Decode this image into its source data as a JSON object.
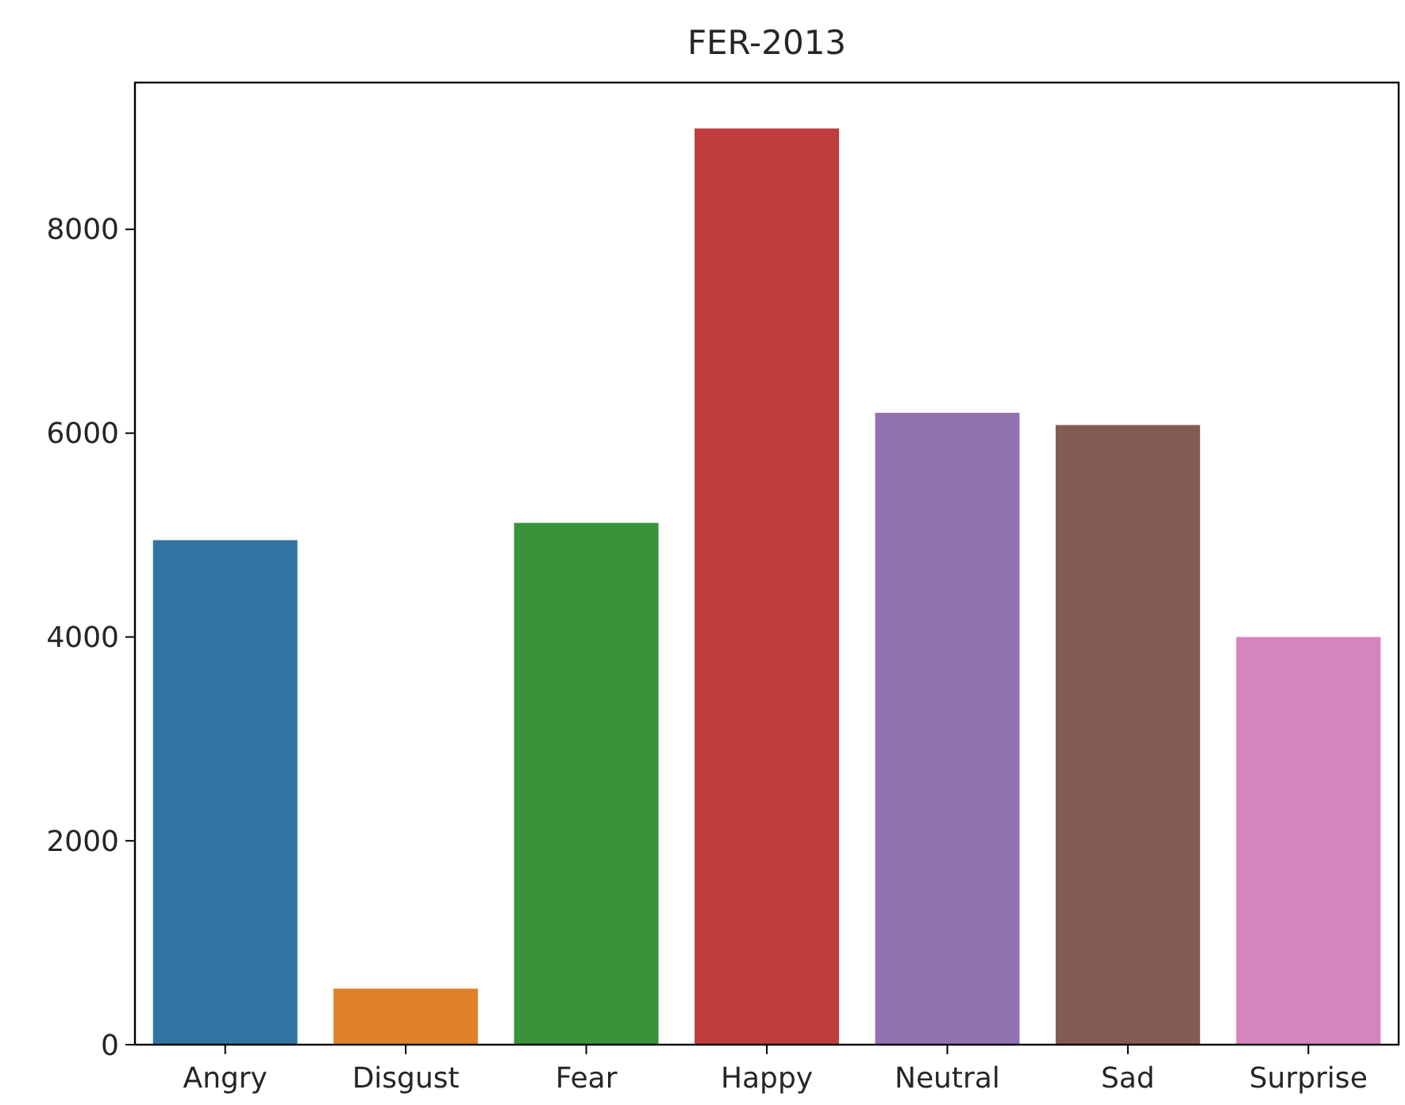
{
  "chart_data": {
    "type": "bar",
    "title": "FER-2013",
    "categories": [
      "Angry",
      "Disgust",
      "Fear",
      "Happy",
      "Neutral",
      "Sad",
      "Surprise"
    ],
    "values": [
      4950,
      550,
      5120,
      8990,
      6200,
      6080,
      4000
    ],
    "colors": [
      "#3274a1",
      "#e1812c",
      "#3a923a",
      "#c03d3e",
      "#9372b2",
      "#845b53",
      "#d684bd"
    ],
    "ylim": [
      0,
      9440
    ],
    "yticks": [
      0,
      2000,
      4000,
      6000,
      8000
    ],
    "grid": false
  }
}
